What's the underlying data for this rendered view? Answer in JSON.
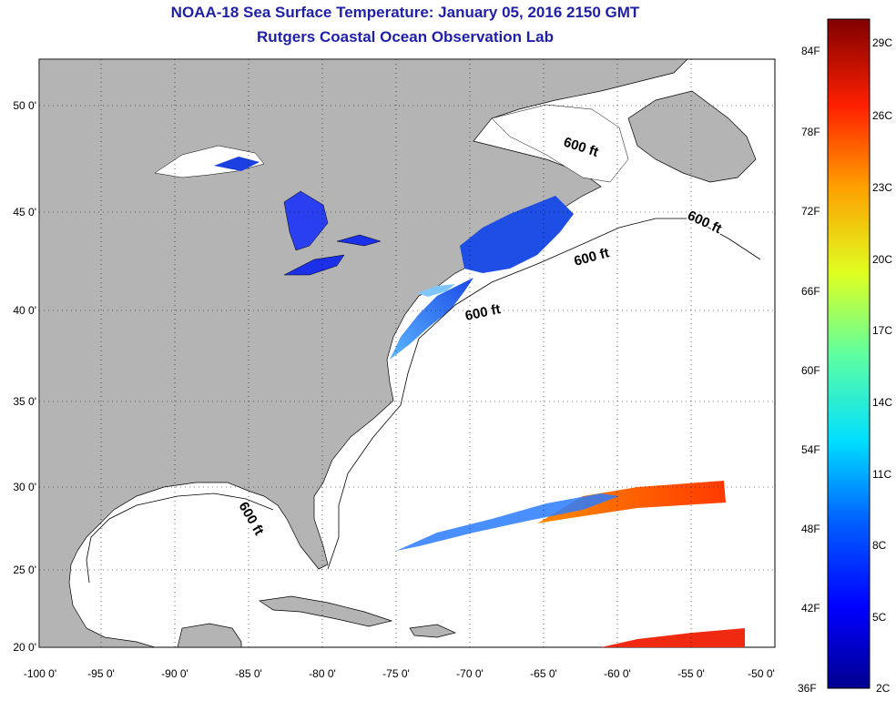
{
  "title": "NOAA-18 Sea Surface Temperature:  January 05, 2016 2150 GMT",
  "subtitle": "Rutgers Coastal Ocean Observation Lab",
  "lat_labels": [
    "50 0'",
    "45 0'",
    "40 0'",
    "35 0'",
    "30 0'",
    "25 0'",
    "20 0'"
  ],
  "lon_labels": [
    "-100 0'",
    "-95 0'",
    "-90 0'",
    "-85 0'",
    "-80 0'",
    "-75 0'",
    "-70 0'",
    "-65 0'",
    "-60 0'",
    "-55 0'",
    "-50 0'"
  ],
  "contour_label": "600 ft",
  "colorbar": {
    "fahrenheit": [
      "84F",
      "78F",
      "72F",
      "66F",
      "60F",
      "54F",
      "48F",
      "42F",
      "36F"
    ],
    "celsius": [
      "29C",
      "26C",
      "23C",
      "20C",
      "17C",
      "14C",
      "11C",
      "8C",
      "5C",
      "2C"
    ]
  },
  "colors": {
    "land": "#b4b4b4",
    "ocean": "#ffffff",
    "title": "#1f1fa8",
    "grid": "#000000"
  }
}
